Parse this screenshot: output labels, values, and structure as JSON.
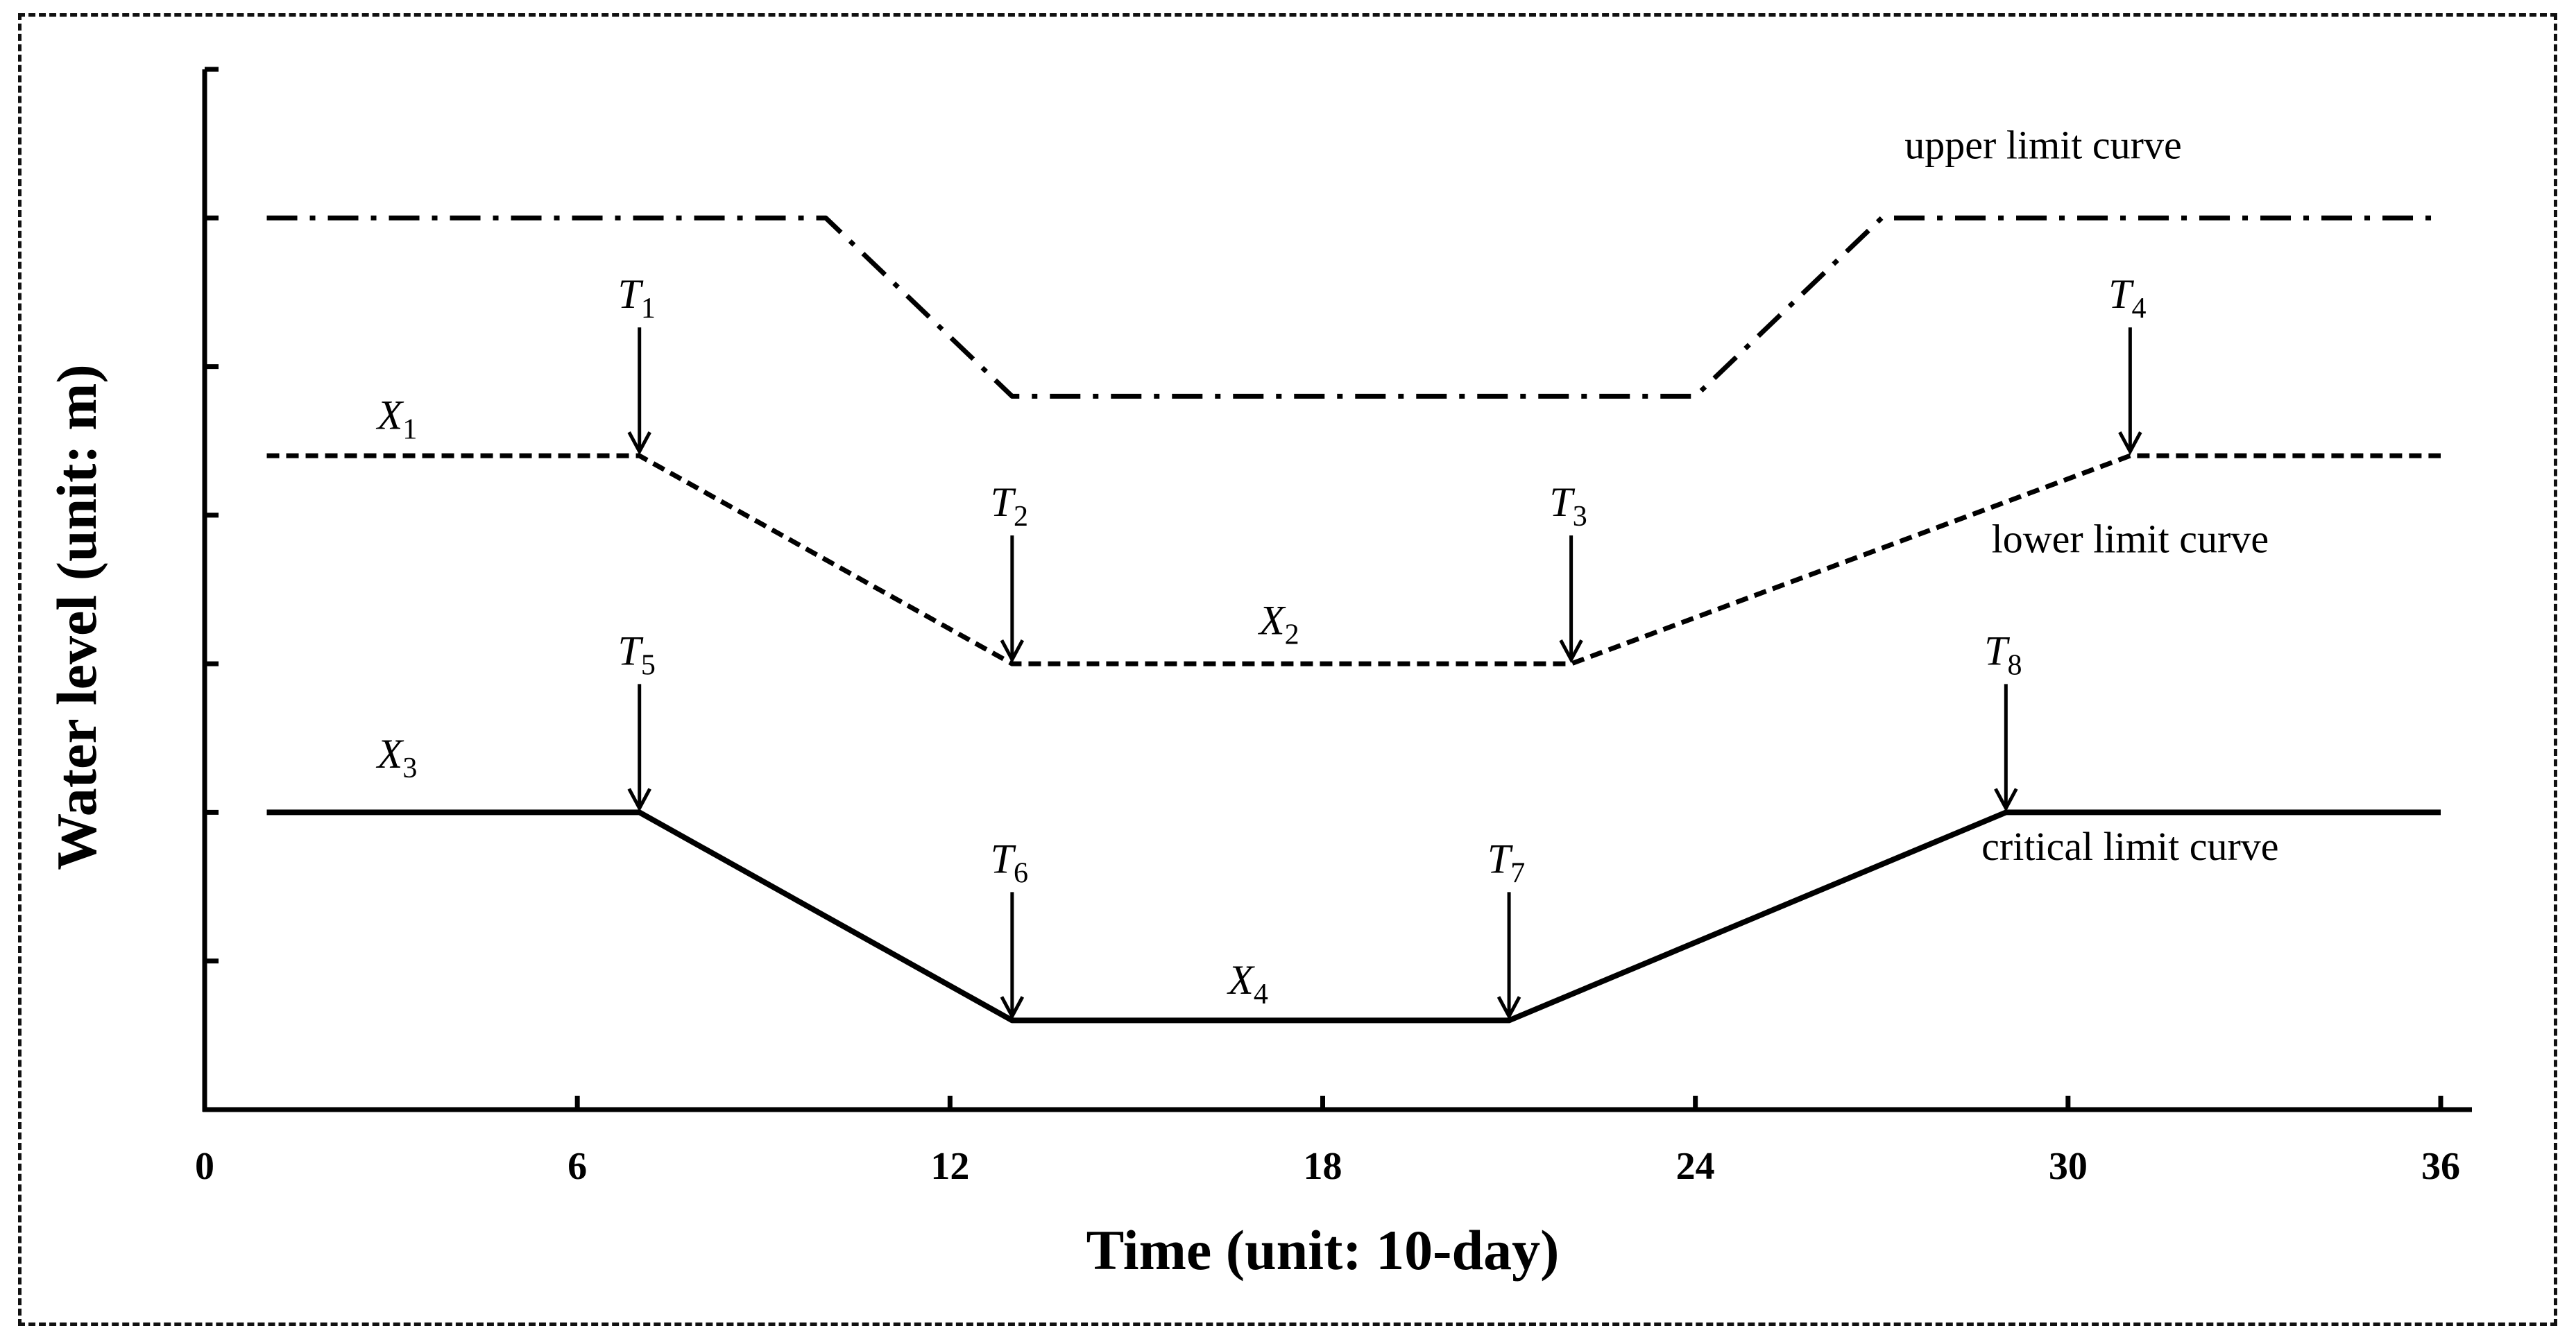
{
  "chart_data": {
    "type": "line",
    "title": "",
    "xlabel": "Time (unit: 10-day)",
    "ylabel": "Water level (unit: m)",
    "xlim": [
      0,
      36
    ],
    "ylim": [
      0,
      7
    ],
    "x_ticks": [
      "0",
      "6",
      "12",
      "18",
      "24",
      "30",
      "36"
    ],
    "y_tick_values": [
      1,
      2,
      3,
      4,
      5,
      6,
      7
    ],
    "y_tick_labels_shown": false,
    "grid": false,
    "series": [
      {
        "name": "upper limit curve",
        "style": "dash-dot",
        "x": [
          1,
          10,
          13,
          24,
          27,
          36
        ],
        "y": [
          6,
          6,
          4.8,
          4.8,
          6,
          6
        ]
      },
      {
        "name": "lower limit curve",
        "style": "dashed",
        "x": [
          1,
          7,
          13,
          22,
          31,
          36
        ],
        "y": [
          4.4,
          4.4,
          3,
          3,
          4.4,
          4.4
        ]
      },
      {
        "name": "critical limit curve",
        "style": "solid",
        "x": [
          1,
          7,
          13,
          21,
          29,
          36
        ],
        "y": [
          2,
          2,
          0.6,
          0.6,
          2,
          2
        ]
      }
    ],
    "curve_labels": [
      {
        "text": "upper limit curve",
        "x": 29.6,
        "y": 6.4
      },
      {
        "text": "lower limit curve",
        "x": 31,
        "y": 3.75
      },
      {
        "text": "critical limit curve",
        "x": 31,
        "y": 1.68
      }
    ],
    "annotations": [
      {
        "main": "T",
        "sub": "1",
        "x": 7,
        "y": 4.4,
        "arrow": true
      },
      {
        "main": "T",
        "sub": "2",
        "x": 13,
        "y": 3,
        "arrow": true
      },
      {
        "main": "T",
        "sub": "3",
        "x": 22,
        "y": 3,
        "arrow": true
      },
      {
        "main": "T",
        "sub": "4",
        "x": 31,
        "y": 4.4,
        "arrow": true
      },
      {
        "main": "T",
        "sub": "5",
        "x": 7,
        "y": 2,
        "arrow": true
      },
      {
        "main": "T",
        "sub": "6",
        "x": 13,
        "y": 0.6,
        "arrow": true
      },
      {
        "main": "T",
        "sub": "7",
        "x": 21,
        "y": 0.6,
        "arrow": true
      },
      {
        "main": "T",
        "sub": "8",
        "x": 29,
        "y": 2,
        "arrow": true
      },
      {
        "main": "X",
        "sub": "1",
        "x": 3.1,
        "y": 4.58,
        "arrow": false
      },
      {
        "main": "X",
        "sub": "2",
        "x": 17.3,
        "y": 3.2,
        "arrow": false
      },
      {
        "main": "X",
        "sub": "3",
        "x": 3.1,
        "y": 2.3,
        "arrow": false
      },
      {
        "main": "X",
        "sub": "4",
        "x": 16.8,
        "y": 0.78,
        "arrow": false
      }
    ]
  }
}
